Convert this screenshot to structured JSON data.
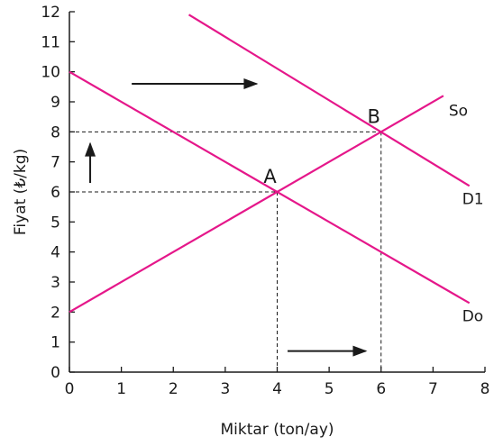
{
  "chart_data": {
    "type": "line",
    "xlabel": "Miktar (ton/ay)",
    "ylabel": "Fiyat (₺/kg)",
    "xlim": [
      0,
      8
    ],
    "ylim": [
      0,
      12
    ],
    "x_ticks": [
      "0",
      "1",
      "2",
      "3",
      "4",
      "5",
      "6",
      "7",
      "8"
    ],
    "y_ticks": [
      "0",
      "1",
      "2",
      "3",
      "4",
      "5",
      "6",
      "7",
      "8",
      "9",
      "10",
      "11",
      "12"
    ],
    "grid": false,
    "line_color": "#e5178a",
    "series": [
      {
        "name": "So",
        "points": [
          [
            0,
            2
          ],
          [
            7.2,
            9.2
          ]
        ]
      },
      {
        "name": "Do",
        "points": [
          [
            0,
            10
          ],
          [
            7.7,
            2.3
          ]
        ]
      },
      {
        "name": "D1",
        "points": [
          [
            2.3,
            11.9
          ],
          [
            7.7,
            6.2
          ]
        ]
      }
    ],
    "equilibrium_points": [
      {
        "label": "A",
        "x": 4,
        "y": 6
      },
      {
        "label": "B",
        "x": 6,
        "y": 8
      }
    ],
    "shift_arrows": [
      {
        "direction": "right",
        "from": [
          1.2,
          9.6
        ],
        "to": [
          3.6,
          9.6
        ]
      },
      {
        "direction": "right",
        "from": [
          4.2,
          0.7
        ],
        "to": [
          5.7,
          0.7
        ]
      },
      {
        "direction": "up",
        "from": [
          0.4,
          6.3
        ],
        "to": [
          0.4,
          7.6
        ]
      }
    ]
  }
}
